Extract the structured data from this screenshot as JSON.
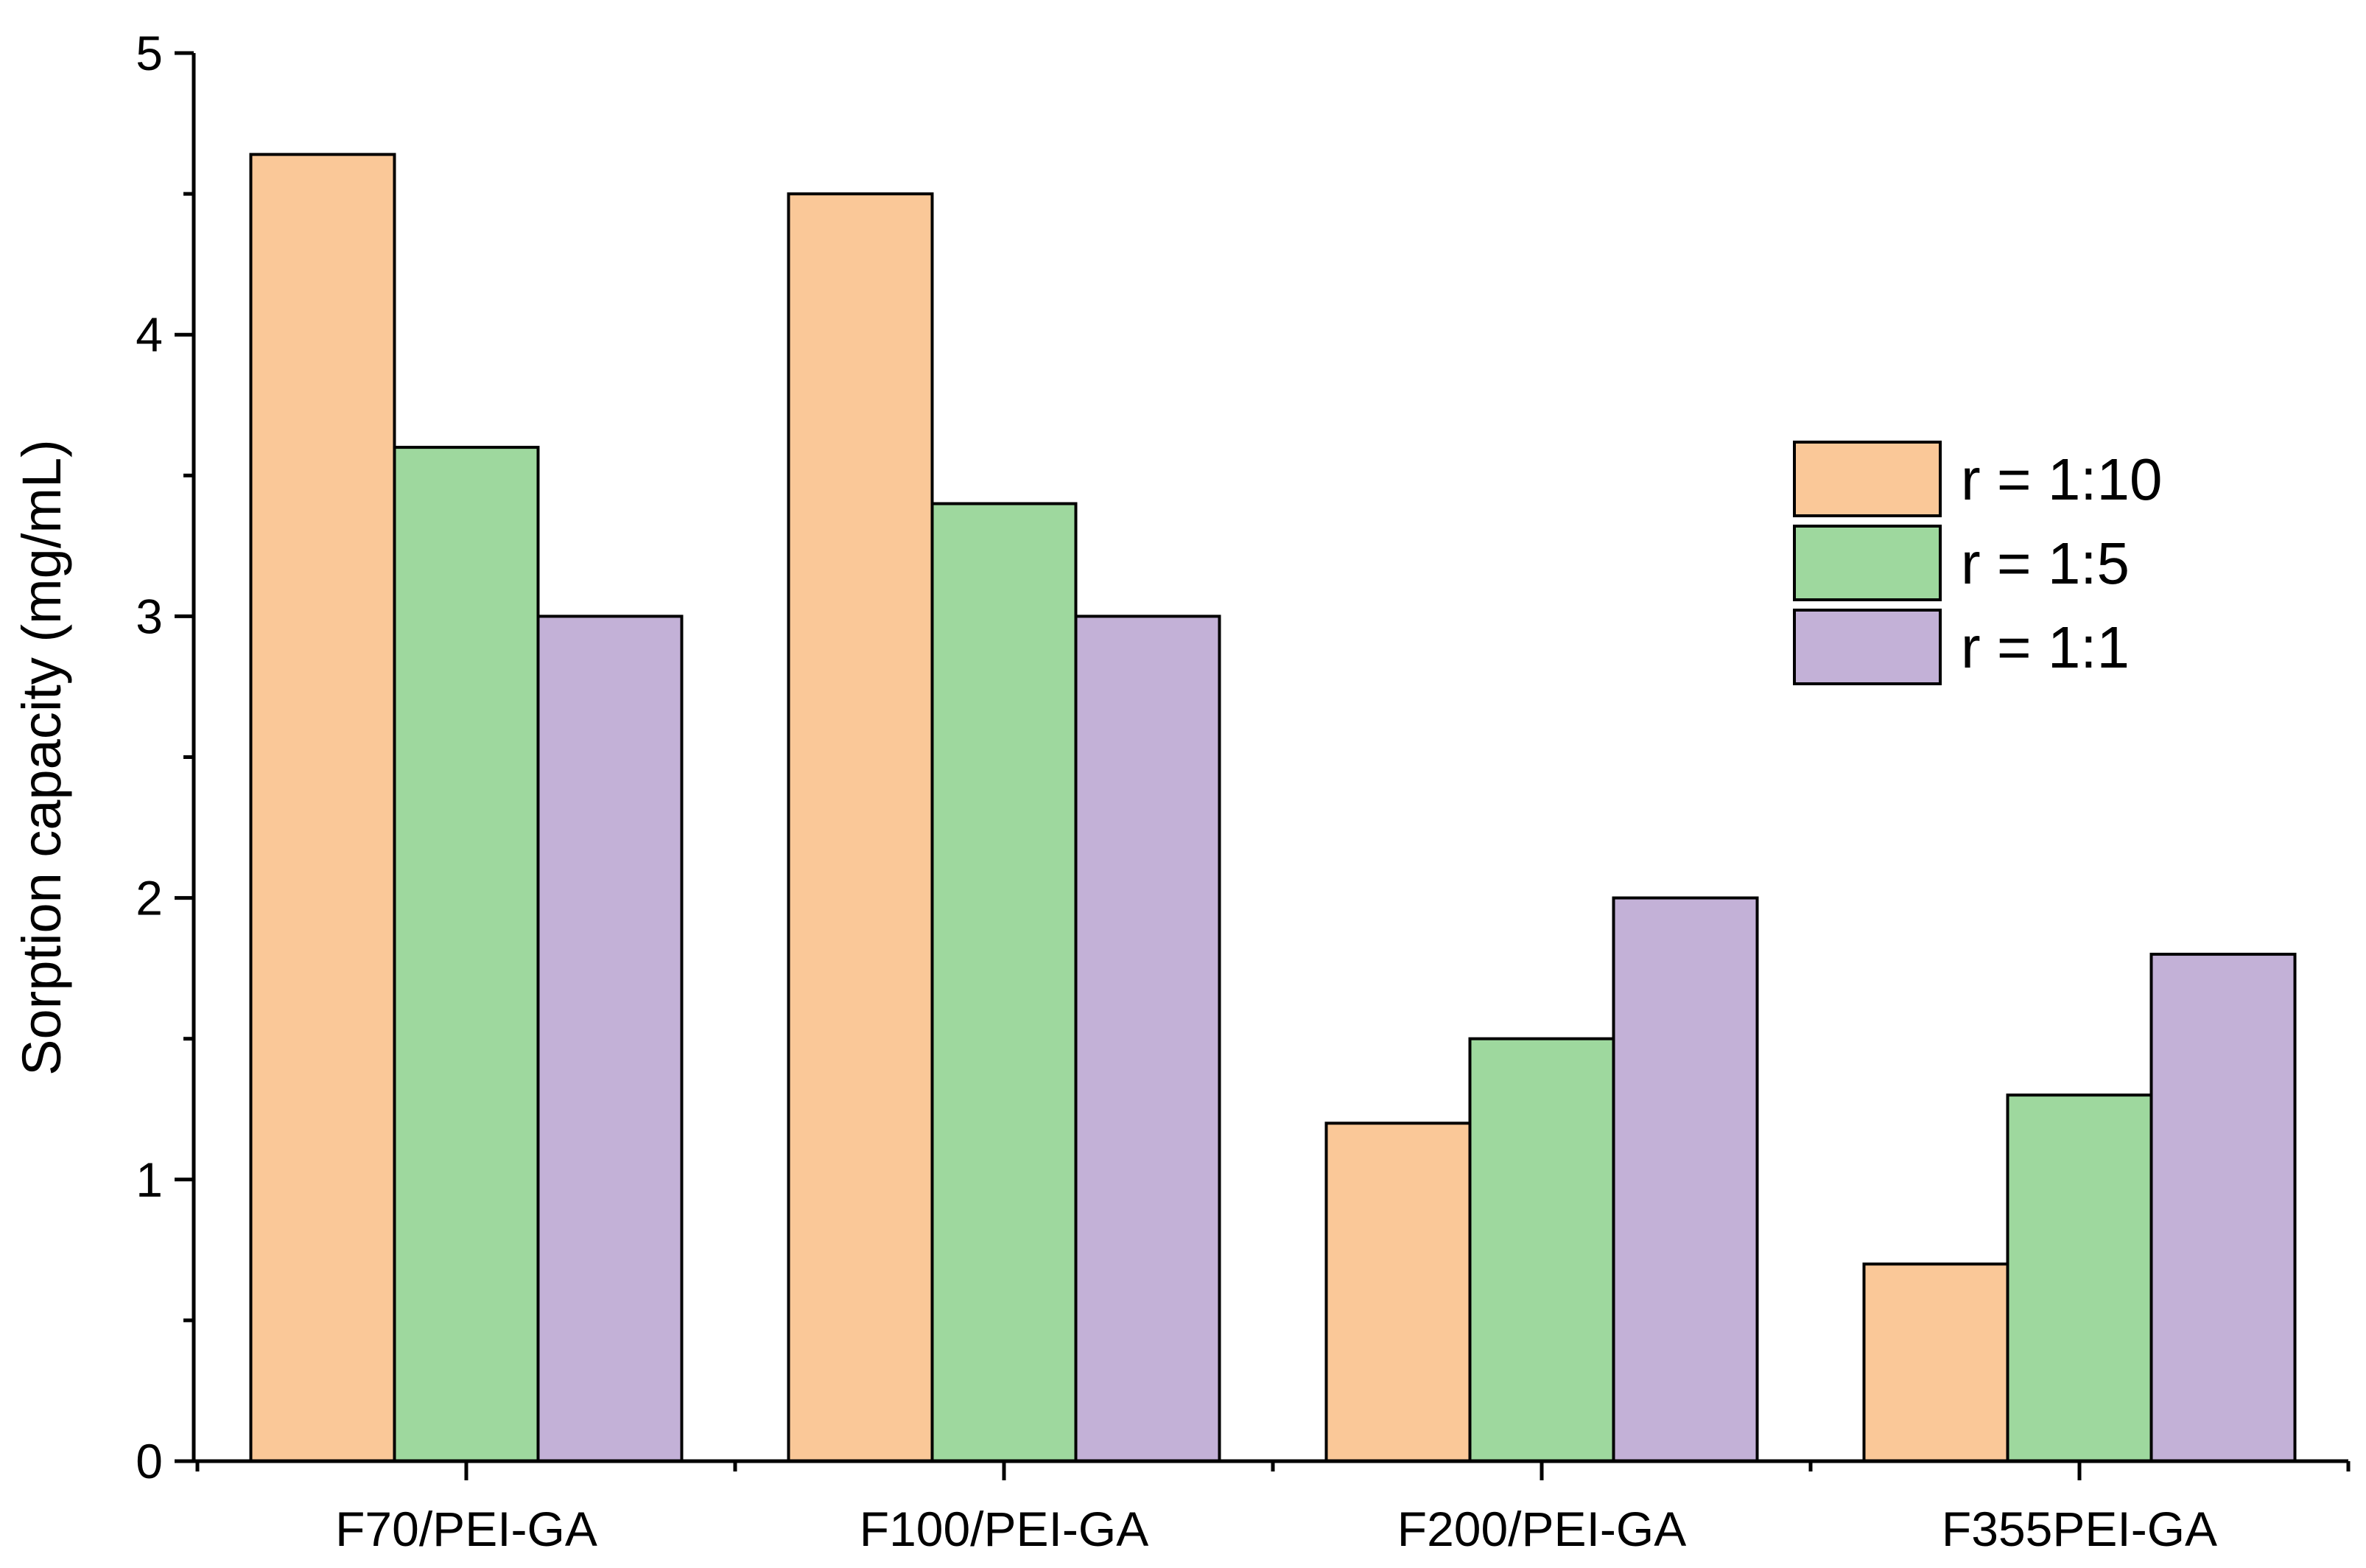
{
  "chart_data": {
    "type": "bar",
    "title": "",
    "xlabel": "",
    "ylabel": "Sorption capacity (mg/mL)",
    "ylim": [
      0,
      5
    ],
    "yticks": [
      0,
      1,
      2,
      3,
      4,
      5
    ],
    "yticks_minor_step": 0.5,
    "grid": false,
    "legend_position": "right",
    "categories": [
      "F70/PEI-GA",
      "F100/PEI-GA",
      "F200/PEI-GA",
      "F355PEI-GA"
    ],
    "series": [
      {
        "name": "r = 1:10",
        "color": "#FAC898",
        "values": [
          4.64,
          4.5,
          1.2,
          0.7
        ]
      },
      {
        "name": "r = 1:5",
        "color": "#9ED89E",
        "values": [
          3.6,
          3.4,
          1.5,
          1.3
        ]
      },
      {
        "name": "r = 1:1",
        "color": "#C3B1D7",
        "values": [
          3.0,
          3.0,
          2.0,
          1.8
        ]
      }
    ]
  }
}
